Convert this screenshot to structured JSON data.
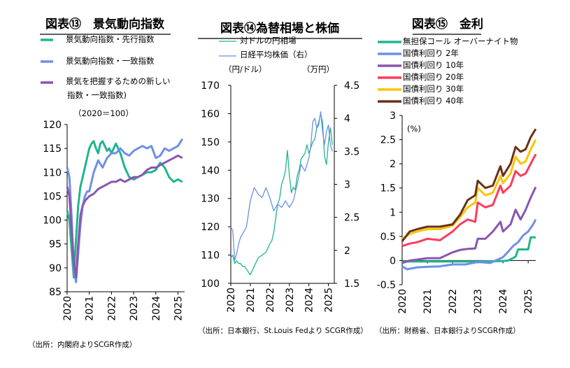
{
  "chart_data": [
    {
      "type": "line",
      "title": "図表⑬　景気動向指数",
      "unit": "（2020＝100）",
      "ylim": [
        85,
        120
      ],
      "yticks": [
        "85",
        "90",
        "95",
        "100",
        "105",
        "110",
        "115",
        "120"
      ],
      "xlim": [
        2020,
        2025.3
      ],
      "xticks": [
        "2020",
        "2021",
        "2022",
        "2023",
        "2024",
        "2025"
      ],
      "legend": [
        "景気動向指数・先行指数",
        "景気動向指数・一致指数",
        "景気を把握するための新しい",
        "指数・一致指数)"
      ],
      "source": "（出所：内閣府よりSCGR作成）",
      "series": [
        {
          "name": "景気動向指数・先行指数",
          "color": "#1fb58f",
          "x": [
            2020.0,
            2020.1,
            2020.2,
            2020.3,
            2020.4,
            2020.5,
            2020.6,
            2020.7,
            2020.8,
            2020.9,
            2021.0,
            2021.1,
            2021.2,
            2021.3,
            2021.4,
            2021.5,
            2021.6,
            2021.7,
            2021.8,
            2021.9,
            2022.0,
            2022.2,
            2022.4,
            2022.6,
            2022.8,
            2023.0,
            2023.2,
            2023.4,
            2023.6,
            2023.8,
            2024.0,
            2024.2,
            2024.4,
            2024.6,
            2024.8,
            2025.0,
            2025.2
          ],
          "y": [
            102,
            100,
            94,
            88,
            96,
            103,
            107,
            109,
            111,
            113,
            115,
            116,
            116.5,
            115,
            114,
            116,
            116.5,
            115.5,
            114.5,
            115,
            114,
            116,
            114,
            111,
            109,
            108.5,
            109,
            109.5,
            110,
            110,
            110.5,
            112,
            111,
            109,
            108,
            108.5,
            108
          ]
        },
        {
          "name": "景気動向指数・一致指数",
          "color": "#6f8fe6",
          "x": [
            2020.0,
            2020.1,
            2020.2,
            2020.3,
            2020.4,
            2020.5,
            2020.6,
            2020.7,
            2020.8,
            2020.9,
            2021.0,
            2021.2,
            2021.4,
            2021.6,
            2021.8,
            2022.0,
            2022.2,
            2022.4,
            2022.6,
            2022.8,
            2023.0,
            2023.2,
            2023.4,
            2023.6,
            2023.8,
            2024.0,
            2024.2,
            2024.4,
            2024.6,
            2024.8,
            2025.0,
            2025.2
          ],
          "y": [
            111,
            109,
            101,
            90,
            87,
            93,
            99,
            103,
            105,
            106,
            106,
            110,
            112.5,
            111,
            113,
            114,
            114,
            115,
            114,
            113.5,
            114.5,
            115,
            115.5,
            115,
            115.5,
            113,
            113.5,
            115,
            114.5,
            115,
            115.5,
            117
          ]
        },
        {
          "name": "景気を把握するための新しい指数・一致指数",
          "color": "#8a55b0",
          "x": [
            2020.0,
            2020.1,
            2020.2,
            2020.3,
            2020.4,
            2020.5,
            2020.6,
            2020.7,
            2020.8,
            2020.9,
            2021.0,
            2021.2,
            2021.4,
            2021.6,
            2021.8,
            2022.0,
            2022.2,
            2022.4,
            2022.6,
            2022.8,
            2023.0,
            2023.2,
            2023.4,
            2023.6,
            2023.8,
            2024.0,
            2024.2,
            2024.4,
            2024.6,
            2024.8,
            2025.0,
            2025.2
          ],
          "y": [
            107,
            105,
            98,
            91,
            88,
            95,
            101,
            103,
            104,
            104.5,
            105,
            105.5,
            106.5,
            107,
            107.5,
            108,
            108,
            108.5,
            108,
            108.5,
            109,
            109,
            109.5,
            110.5,
            111,
            111,
            111.5,
            112,
            112.5,
            113,
            113.5,
            113
          ]
        }
      ]
    },
    {
      "type": "line",
      "title": "図表⑭為替相場と株価",
      "unit_left": "（円/ドル）",
      "unit_right": "（万円）",
      "ylim": [
        100,
        170
      ],
      "yticks": [
        "100",
        "110",
        "120",
        "130",
        "140",
        "150",
        "160",
        "170"
      ],
      "y2lim": [
        1.5,
        4.5
      ],
      "y2ticks": [
        "1.5",
        "2",
        "2.5",
        "3",
        "3.5",
        "4",
        "4.5"
      ],
      "xlim": [
        2020,
        2025.3
      ],
      "xticks": [
        "2020",
        "2021",
        "2022",
        "2023",
        "2024",
        "2025"
      ],
      "legend": [
        "対ドルの円相場",
        "日経平均株価（右）"
      ],
      "source": "（出所：日本銀行、St.Louis Fedより SCGR作成）",
      "series": [
        {
          "name": "対ドルの円相場",
          "color": "#1fb58f",
          "axis": "left",
          "x": [
            2020.0,
            2020.1,
            2020.2,
            2020.3,
            2020.4,
            2020.5,
            2020.6,
            2020.7,
            2020.8,
            2020.9,
            2021.0,
            2021.2,
            2021.4,
            2021.6,
            2021.8,
            2022.0,
            2022.1,
            2022.2,
            2022.3,
            2022.4,
            2022.5,
            2022.6,
            2022.7,
            2022.8,
            2022.9,
            2023.0,
            2023.1,
            2023.2,
            2023.3,
            2023.4,
            2023.5,
            2023.6,
            2023.7,
            2023.8,
            2023.9,
            2024.0,
            2024.1,
            2024.2,
            2024.3,
            2024.4,
            2024.5,
            2024.6,
            2024.7,
            2024.8,
            2024.9,
            2025.0,
            2025.1,
            2025.2
          ],
          "y": [
            109,
            110,
            107,
            108,
            107,
            107,
            106,
            106,
            105,
            104,
            103,
            106,
            109,
            110,
            111,
            114,
            115,
            118,
            123,
            128,
            130,
            135,
            137,
            140,
            147,
            138,
            132,
            134,
            133,
            138,
            140,
            144,
            145,
            146,
            149,
            146,
            148,
            150,
            151,
            155,
            157,
            160,
            157,
            145,
            142,
            150,
            155,
            149
          ]
        },
        {
          "name": "日経平均株価（右）",
          "color": "#6f8fe6",
          "axis": "right",
          "x": [
            2020.0,
            2020.1,
            2020.2,
            2020.3,
            2020.4,
            2020.5,
            2020.6,
            2020.7,
            2020.8,
            2020.9,
            2021.0,
            2021.2,
            2021.4,
            2021.6,
            2021.8,
            2022.0,
            2022.2,
            2022.4,
            2022.6,
            2022.8,
            2023.0,
            2023.2,
            2023.4,
            2023.6,
            2023.8,
            2024.0,
            2024.1,
            2024.2,
            2024.3,
            2024.4,
            2024.5,
            2024.6,
            2024.7,
            2024.8,
            2024.9,
            2025.0,
            2025.1,
            2025.2
          ],
          "y": [
            2.35,
            2.3,
            1.85,
            1.95,
            2.1,
            2.2,
            2.25,
            2.3,
            2.35,
            2.55,
            2.75,
            2.95,
            2.85,
            2.8,
            2.95,
            2.8,
            2.6,
            2.7,
            2.65,
            2.75,
            2.65,
            2.75,
            3.0,
            3.3,
            3.2,
            3.4,
            3.6,
            3.95,
            4.0,
            3.85,
            3.9,
            4.1,
            3.8,
            3.6,
            3.8,
            3.9,
            3.6,
            3.5
          ]
        }
      ]
    },
    {
      "type": "line",
      "title": "図表⑮　金利",
      "unit": "(%)",
      "ylim": [
        -0.5,
        3
      ],
      "yticks": [
        "-0.5",
        "0",
        "0.5",
        "1",
        "1.5",
        "2",
        "2.5",
        "3"
      ],
      "xlim": [
        2020,
        2025.3
      ],
      "xticks": [
        "2020",
        "2021",
        "2022",
        "2023",
        "2024",
        "2025"
      ],
      "legend": [
        "無担保コール オーバーナイト物",
        "国債利回り 2年",
        "国債利回り 10年",
        "国債利回り 20年",
        "国債利回り 30年",
        "国債利回り 40年"
      ],
      "source": "（出所：財務省、日本銀行よりSCGR作成）",
      "series": [
        {
          "name": "無担保コール オーバーナイト物",
          "color": "#1fb58f",
          "x": [
            2020.0,
            2021.0,
            2022.0,
            2023.0,
            2024.0,
            2024.2,
            2024.5,
            2024.6,
            2025.0,
            2025.1,
            2025.3
          ],
          "y": [
            -0.02,
            -0.02,
            -0.02,
            -0.02,
            -0.01,
            0.0,
            0.08,
            0.23,
            0.23,
            0.48,
            0.48
          ]
        },
        {
          "name": "国債利回り 2年",
          "color": "#6f8fe6",
          "x": [
            2020.0,
            2020.2,
            2020.6,
            2021.0,
            2021.5,
            2022.0,
            2022.5,
            2023.0,
            2023.5,
            2024.0,
            2024.2,
            2024.4,
            2024.6,
            2024.8,
            2025.0,
            2025.2,
            2025.3
          ],
          "y": [
            -0.12,
            -0.18,
            -0.14,
            -0.13,
            -0.12,
            -0.08,
            -0.08,
            -0.03,
            -0.05,
            0.07,
            0.18,
            0.3,
            0.38,
            0.52,
            0.6,
            0.75,
            0.85
          ]
        },
        {
          "name": "国債利回り 10年",
          "color": "#8a55b0",
          "x": [
            2020.0,
            2020.3,
            2020.6,
            2021.0,
            2021.5,
            2022.0,
            2022.3,
            2022.6,
            2022.9,
            2023.0,
            2023.3,
            2023.6,
            2023.9,
            2024.0,
            2024.3,
            2024.5,
            2024.7,
            2024.9,
            2025.1,
            2025.3
          ],
          "y": [
            -0.05,
            0.0,
            0.02,
            0.05,
            0.05,
            0.17,
            0.22,
            0.24,
            0.25,
            0.45,
            0.45,
            0.6,
            0.8,
            0.6,
            0.75,
            1.05,
            0.85,
            1.05,
            1.3,
            1.52
          ]
        },
        {
          "name": "国債利回り 20年",
          "color": "#ff3b5c",
          "x": [
            2020.0,
            2020.3,
            2020.6,
            2021.0,
            2021.5,
            2022.0,
            2022.3,
            2022.6,
            2022.9,
            2023.0,
            2023.3,
            2023.6,
            2023.9,
            2024.0,
            2024.3,
            2024.5,
            2024.7,
            2024.9,
            2025.1,
            2025.3
          ],
          "y": [
            0.3,
            0.35,
            0.38,
            0.45,
            0.42,
            0.6,
            0.75,
            0.85,
            0.8,
            1.2,
            1.1,
            1.15,
            1.55,
            1.4,
            1.55,
            1.85,
            1.75,
            1.8,
            2.0,
            2.2
          ]
        },
        {
          "name": "国債利回り 30年",
          "color": "#f7c600",
          "x": [
            2020.0,
            2020.3,
            2020.6,
            2021.0,
            2021.5,
            2022.0,
            2022.3,
            2022.6,
            2022.9,
            2023.0,
            2023.3,
            2023.6,
            2023.9,
            2024.0,
            2024.3,
            2024.5,
            2024.7,
            2024.9,
            2025.1,
            2025.3
          ],
          "y": [
            0.45,
            0.55,
            0.6,
            0.65,
            0.65,
            0.72,
            0.9,
            1.1,
            1.2,
            1.5,
            1.35,
            1.4,
            1.75,
            1.6,
            1.8,
            2.15,
            2.0,
            2.05,
            2.3,
            2.5
          ]
        },
        {
          "name": "国債利回り 40年",
          "color": "#6b3018",
          "x": [
            2020.0,
            2020.3,
            2020.6,
            2021.0,
            2021.5,
            2022.0,
            2022.3,
            2022.6,
            2022.9,
            2023.0,
            2023.3,
            2023.6,
            2023.9,
            2024.0,
            2024.3,
            2024.5,
            2024.7,
            2024.9,
            2025.1,
            2025.3
          ],
          "y": [
            0.4,
            0.6,
            0.65,
            0.7,
            0.7,
            0.75,
            0.95,
            1.25,
            1.35,
            1.65,
            1.5,
            1.55,
            1.95,
            1.75,
            2.0,
            2.35,
            2.25,
            2.3,
            2.55,
            2.72
          ]
        }
      ]
    }
  ]
}
